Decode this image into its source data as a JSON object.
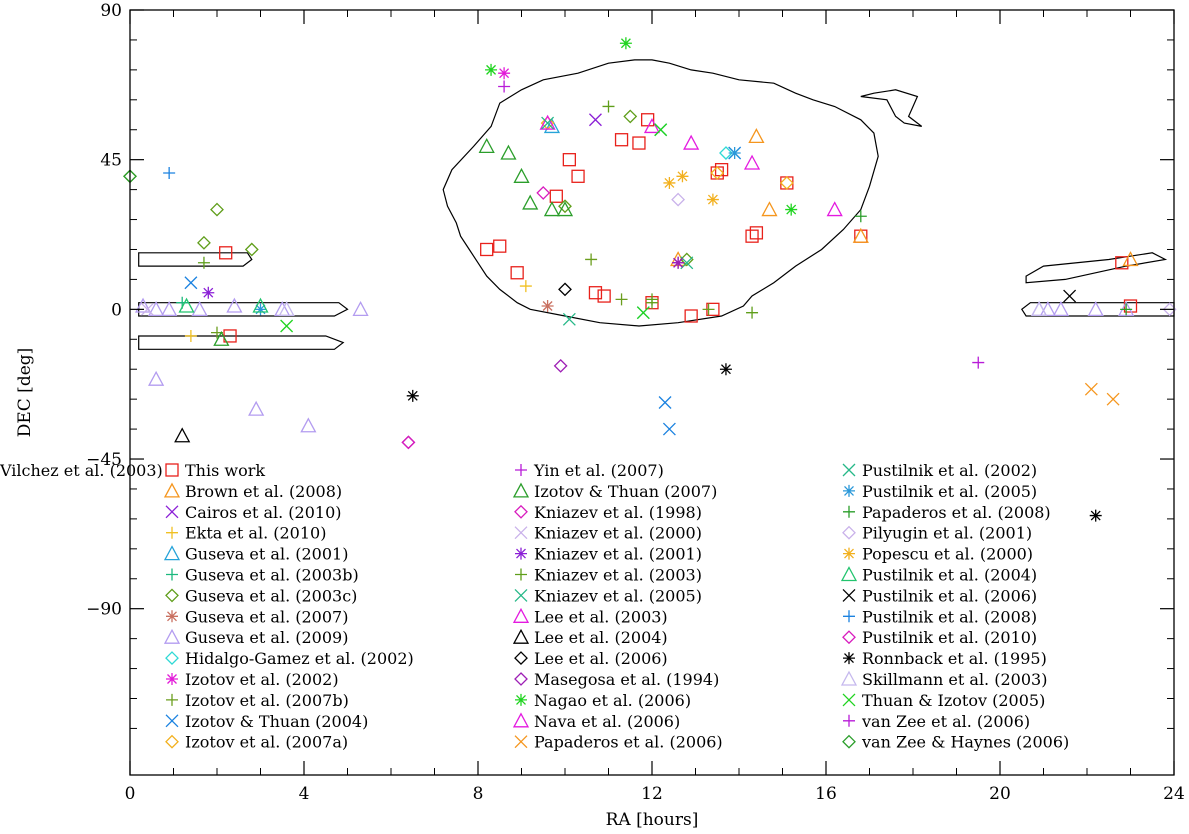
{
  "chart_data": {
    "type": "scatter",
    "xlabel": "RA [hours]",
    "ylabel": "DEC [deg]",
    "xlim": [
      0,
      24
    ],
    "ylim": [
      -140,
      90
    ],
    "xticks": [
      0,
      4,
      8,
      12,
      16,
      20,
      24
    ],
    "yticks": [
      -90,
      -45,
      0,
      45,
      90
    ],
    "grid": false,
    "legend_position": "bottom",
    "colors": {
      "red": "#e8211b",
      "orange": "#f5961e",
      "purple": "#8b1fd6",
      "yellow": "#f0c022",
      "cyan": "#26a3d9",
      "teal": "#1bb87e",
      "olive": "#5f9e1a",
      "salmon": "#c97060",
      "lavender": "#b39cf0",
      "aqua": "#2fd9d5",
      "magenta": "#e21bd8",
      "olivegreen": "#6b9e1e",
      "blue": "#1b82e0",
      "gold": "#f2b01e",
      "violet": "#b81bd8",
      "green": "#2b9e2b",
      "pink": "#d81bbe",
      "lilac": "#c9b2ea",
      "ltblue": "#2a98d9",
      "ltpurple": "#c5b8ee",
      "sea": "#26b888",
      "grey": "#9999aa",
      "black": "#000000",
      "pinkviolet": "#e41ae0",
      "brightgreen": "#20d420",
      "dkpurple": "#9e1fb5",
      "midgreen": "#22c46e"
    },
    "series": [
      {
        "name": "This work",
        "marker": "square",
        "color": "red",
        "points": [
          [
            2.2,
            17
          ],
          [
            2.3,
            -8
          ],
          [
            8.2,
            18
          ],
          [
            8.5,
            19
          ],
          [
            8.9,
            11
          ],
          [
            9.8,
            34
          ],
          [
            10.1,
            45
          ],
          [
            10.3,
            40
          ],
          [
            10.7,
            5
          ],
          [
            10.9,
            4
          ],
          [
            11.3,
            51
          ],
          [
            11.7,
            50
          ],
          [
            11.9,
            57
          ],
          [
            12.0,
            2
          ],
          [
            12.9,
            -2
          ],
          [
            13.4,
            0
          ],
          [
            13.5,
            41
          ],
          [
            13.6,
            42
          ],
          [
            14.3,
            22
          ],
          [
            14.4,
            23
          ],
          [
            15.1,
            38
          ],
          [
            16.8,
            22
          ],
          [
            22.8,
            14
          ],
          [
            23.0,
            1
          ]
        ]
      },
      {
        "name": "Brown et al. (2008)",
        "marker": "triangle",
        "color": "orange",
        "points": [
          [
            12.6,
            15
          ],
          [
            14.4,
            52
          ],
          [
            14.7,
            30
          ],
          [
            16.8,
            22
          ],
          [
            23.0,
            15
          ]
        ]
      },
      {
        "name": "Cairos et al. (2010)",
        "marker": "x",
        "color": "purple",
        "points": [
          [
            10.7,
            57
          ]
        ]
      },
      {
        "name": "Ekta et al. (2010)",
        "marker": "plus",
        "color": "yellow",
        "points": [
          [
            1.4,
            -8
          ],
          [
            9.1,
            7
          ]
        ]
      },
      {
        "name": "Guseva et al. (2001)",
        "marker": "triangle",
        "color": "cyan",
        "points": [
          [
            9.7,
            55
          ]
        ]
      },
      {
        "name": "Guseva et al. (2003b)",
        "marker": "plus",
        "color": "teal",
        "points": [
          [
            1.2,
            2
          ]
        ]
      },
      {
        "name": "Guseva et al. (2003c)",
        "marker": "diamond",
        "color": "olive",
        "points": [
          [
            0.0,
            40
          ],
          [
            1.7,
            20
          ],
          [
            2.0,
            30
          ],
          [
            2.8,
            18
          ],
          [
            10.0,
            31
          ],
          [
            11.5,
            58
          ],
          [
            12.8,
            15
          ]
        ]
      },
      {
        "name": "Guseva et al. (2007)",
        "marker": "asterisk",
        "color": "salmon",
        "points": [
          [
            9.6,
            1
          ]
        ]
      },
      {
        "name": "Guseva et al. (2009)",
        "marker": "triangle",
        "color": "lavender",
        "points": [
          [
            0.3,
            1
          ],
          [
            0.6,
            0
          ],
          [
            0.9,
            0
          ],
          [
            1.6,
            0
          ],
          [
            2.4,
            1
          ],
          [
            3.5,
            0
          ],
          [
            5.3,
            0
          ],
          [
            0.6,
            -21
          ],
          [
            2.9,
            -30
          ],
          [
            4.1,
            -35
          ],
          [
            20.9,
            0
          ],
          [
            21.1,
            0
          ],
          [
            21.4,
            0
          ],
          [
            22.2,
            0
          ],
          [
            22.9,
            0
          ]
        ]
      },
      {
        "name": "Hidalgo-Gamez et al. (2002)",
        "marker": "diamond",
        "color": "aqua",
        "points": [
          [
            13.7,
            47
          ]
        ]
      },
      {
        "name": "Izotov et al. (2002)",
        "marker": "asterisk",
        "color": "magenta",
        "points": [
          [
            8.6,
            71
          ]
        ]
      },
      {
        "name": "Izotov et al. (2007b)",
        "marker": "plus",
        "color": "olivegreen",
        "points": [
          [
            2.0,
            -7
          ],
          [
            10.6,
            15
          ],
          [
            11.3,
            3
          ],
          [
            12.0,
            2
          ],
          [
            13.3,
            0
          ]
        ]
      },
      {
        "name": "Izotov & Thuan (2004)",
        "marker": "x",
        "color": "blue",
        "points": [
          [
            1.4,
            8
          ],
          [
            12.3,
            -28
          ],
          [
            12.4,
            -36
          ],
          [
            13.9,
            47
          ]
        ]
      },
      {
        "name": "Izotov et al. (2007a)",
        "marker": "diamond",
        "color": "gold",
        "points": [
          [
            9.6,
            56
          ],
          [
            13.5,
            41
          ],
          [
            15.1,
            38
          ]
        ]
      },
      {
        "name": "Yin et al. (2007)",
        "marker": "plus",
        "color": "violet",
        "points": [
          [
            8.6,
            67
          ]
        ]
      },
      {
        "name": "Izotov & Thuan (2007)",
        "marker": "triangle",
        "color": "green",
        "points": [
          [
            2.1,
            -9
          ],
          [
            8.2,
            49
          ],
          [
            8.7,
            47
          ],
          [
            9.0,
            40
          ],
          [
            9.2,
            32
          ],
          [
            9.7,
            30
          ],
          [
            10.0,
            30
          ]
        ]
      },
      {
        "name": "Kniazev et al. (1998)",
        "marker": "diamond",
        "color": "pink",
        "points": [
          [
            9.5,
            35
          ]
        ]
      },
      {
        "name": "Kniazev et al. (2000)",
        "marker": "x",
        "color": "lilac",
        "points": [
          [
            0.4,
            0
          ]
        ]
      },
      {
        "name": "Kniazev et al. (2001)",
        "marker": "asterisk",
        "color": "purple",
        "points": [
          [
            1.8,
            5
          ],
          [
            12.6,
            14
          ]
        ]
      },
      {
        "name": "Kniazev et al. (2003)",
        "marker": "plus",
        "color": "olive",
        "points": [
          [
            11.0,
            61
          ],
          [
            1.7,
            14
          ],
          [
            12.0,
            3
          ],
          [
            14.3,
            -1
          ]
        ]
      },
      {
        "name": "Kniazev et al. (2005)",
        "marker": "x",
        "color": "sea",
        "points": [
          [
            10.1,
            -3
          ]
        ]
      },
      {
        "name": "Lee et al. (2003)",
        "marker": "triangle",
        "color": "pinkviolet",
        "points": [
          [
            12.0,
            55
          ],
          [
            12.9,
            50
          ],
          [
            14.3,
            44
          ],
          [
            16.2,
            30
          ]
        ]
      },
      {
        "name": "Lee et al. (2004)",
        "marker": "triangle",
        "color": "black",
        "points": [
          [
            1.2,
            -38
          ]
        ]
      },
      {
        "name": "Lee et al. (2006)",
        "marker": "diamond",
        "color": "black",
        "points": [
          [
            10.0,
            6
          ]
        ]
      },
      {
        "name": "Masegosa et al. (1994)",
        "marker": "diamond",
        "color": "dkpurple",
        "points": [
          [
            6.4,
            -40
          ],
          [
            9.9,
            -17
          ]
        ]
      },
      {
        "name": "Nagao et al. (2006)",
        "marker": "asterisk",
        "color": "brightgreen",
        "points": [
          [
            8.3,
            72
          ],
          [
            11.4,
            80
          ],
          [
            15.2,
            30
          ]
        ]
      },
      {
        "name": "Nava et al. (2006)",
        "marker": "triangle",
        "color": "pinkviolet",
        "points": [
          [
            9.6,
            56
          ]
        ]
      },
      {
        "name": "Papaderos et al. (2006)",
        "marker": "x",
        "color": "orange",
        "points": [
          [
            22.1,
            -24
          ],
          [
            22.6,
            -27
          ]
        ]
      },
      {
        "name": "Pustilnik et al. (2002)",
        "marker": "x",
        "color": "sea",
        "points": [
          [
            9.6,
            56
          ],
          [
            12.2,
            54
          ],
          [
            11.8,
            -1
          ],
          [
            12.8,
            14
          ]
        ]
      },
      {
        "name": "Pustilnik et al. (2005)",
        "marker": "asterisk",
        "color": "ltblue",
        "points": [
          [
            13.9,
            47
          ],
          [
            3.0,
            0
          ]
        ]
      },
      {
        "name": "Papaderos et al. (2008)",
        "marker": "plus",
        "color": "green",
        "points": [
          [
            16.8,
            28
          ],
          [
            22.9,
            0
          ]
        ]
      },
      {
        "name": "Pilyugin et al. (2001)",
        "marker": "diamond",
        "color": "lilac",
        "points": [
          [
            12.6,
            33
          ],
          [
            23.9,
            0
          ]
        ]
      },
      {
        "name": "Popescu et al. (2000)",
        "marker": "asterisk",
        "color": "gold",
        "points": [
          [
            12.4,
            38
          ],
          [
            12.7,
            40
          ],
          [
            13.4,
            33
          ]
        ]
      },
      {
        "name": "Pustilnik et al. (2004)",
        "marker": "triangle",
        "color": "midgreen",
        "points": [
          [
            3.0,
            1
          ],
          [
            1.3,
            1
          ]
        ]
      },
      {
        "name": "Pustilnik et al. (2006)",
        "marker": "x",
        "color": "black",
        "points": [
          [
            21.6,
            4
          ]
        ]
      },
      {
        "name": "Pustilnik et al. (2008)",
        "marker": "plus",
        "color": "blue",
        "points": [
          [
            0.9,
            41
          ]
        ]
      },
      {
        "name": "Pustilnik et al. (2010)",
        "marker": "diamond",
        "color": "pink",
        "points": [
          [
            6.4,
            -40
          ]
        ]
      },
      {
        "name": "Ronnback et al. (1995)",
        "marker": "asterisk",
        "color": "black",
        "points": [
          [
            6.5,
            -26
          ],
          [
            13.7,
            -18
          ],
          [
            22.2,
            -62
          ]
        ]
      },
      {
        "name": "Skillmann et al. (2003)",
        "marker": "triangle",
        "color": "ltpurple",
        "points": [
          [
            3.6,
            0
          ],
          [
            20.9,
            0
          ]
        ]
      },
      {
        "name": "Thuan & Izotov (2005)",
        "marker": "x",
        "color": "brightgreen",
        "points": [
          [
            3.6,
            -5
          ],
          [
            12.2,
            54
          ],
          [
            11.8,
            -1
          ]
        ]
      },
      {
        "name": "van Zee et al. (2006)",
        "marker": "plus",
        "color": "violet",
        "points": [
          [
            19.5,
            -16
          ]
        ]
      },
      {
        "name": "van Zee & Haynes (2006)",
        "marker": "diamond",
        "color": "green",
        "points": [
          [
            0.0,
            40
          ]
        ]
      },
      {
        "name": "Vilchez et al. (2003)",
        "marker": "asterisk",
        "color": "dkpurple",
        "points": [
          [
            12.6,
            14
          ]
        ]
      }
    ],
    "contours": [
      [
        [
          8.3,
          55
        ],
        [
          8.5,
          62
        ],
        [
          9.0,
          66
        ],
        [
          9.5,
          69
        ],
        [
          10.3,
          71
        ],
        [
          11.0,
          74
        ],
        [
          11.6,
          75
        ],
        [
          12.0,
          75
        ],
        [
          12.4,
          74
        ],
        [
          12.9,
          72
        ],
        [
          13.4,
          71
        ],
        [
          14.0,
          69
        ],
        [
          14.8,
          68
        ],
        [
          15.3,
          65
        ],
        [
          15.7,
          63
        ],
        [
          16.2,
          61
        ],
        [
          16.8,
          57
        ],
        [
          17.1,
          53
        ],
        [
          17.2,
          46
        ],
        [
          17.0,
          37
        ],
        [
          16.8,
          30
        ],
        [
          16.4,
          24
        ],
        [
          15.9,
          18
        ],
        [
          15.3,
          13
        ],
        [
          14.8,
          8
        ],
        [
          14.3,
          4
        ],
        [
          14.1,
          1
        ],
        [
          13.6,
          -2
        ],
        [
          12.6,
          -4
        ],
        [
          11.7,
          -5
        ],
        [
          10.8,
          -4
        ],
        [
          10.0,
          -2
        ],
        [
          9.2,
          0
        ],
        [
          8.9,
          2
        ],
        [
          8.5,
          6
        ],
        [
          8.2,
          10
        ],
        [
          8.0,
          14
        ],
        [
          7.8,
          18
        ],
        [
          7.6,
          22
        ],
        [
          7.5,
          26
        ],
        [
          7.3,
          31
        ],
        [
          7.2,
          36
        ],
        [
          7.4,
          42
        ],
        [
          7.9,
          49
        ],
        [
          8.3,
          55
        ]
      ],
      [
        [
          16.8,
          64
        ],
        [
          17.4,
          63
        ],
        [
          17.6,
          58
        ],
        [
          17.8,
          56
        ],
        [
          18.2,
          55
        ],
        [
          17.9,
          58
        ],
        [
          18.0,
          61
        ],
        [
          18.1,
          64
        ],
        [
          17.6,
          66
        ],
        [
          17.1,
          65
        ],
        [
          16.8,
          64
        ]
      ],
      [
        [
          0.2,
          17
        ],
        [
          2.7,
          17
        ],
        [
          2.8,
          15
        ],
        [
          2.6,
          13
        ],
        [
          0.2,
          13
        ],
        [
          0.2,
          17
        ]
      ],
      [
        [
          0.2,
          2
        ],
        [
          4.8,
          2
        ],
        [
          5.0,
          0
        ],
        [
          4.7,
          -2
        ],
        [
          0.2,
          -2
        ],
        [
          0.2,
          2
        ]
      ],
      [
        [
          0.2,
          -8
        ],
        [
          4.5,
          -8
        ],
        [
          4.9,
          -10
        ],
        [
          4.7,
          -12
        ],
        [
          0.2,
          -12
        ],
        [
          0.2,
          -8
        ]
      ],
      [
        [
          20.7,
          2
        ],
        [
          24.0,
          2
        ],
        [
          24.0,
          -2
        ],
        [
          20.6,
          -2
        ],
        [
          20.5,
          0
        ],
        [
          20.7,
          2
        ]
      ],
      [
        [
          20.6,
          10
        ],
        [
          21.0,
          13
        ],
        [
          22.5,
          15
        ],
        [
          23.5,
          17
        ],
        [
          23.8,
          15
        ],
        [
          22.9,
          13
        ],
        [
          21.5,
          9
        ],
        [
          20.6,
          8
        ],
        [
          20.6,
          10
        ]
      ]
    ]
  }
}
